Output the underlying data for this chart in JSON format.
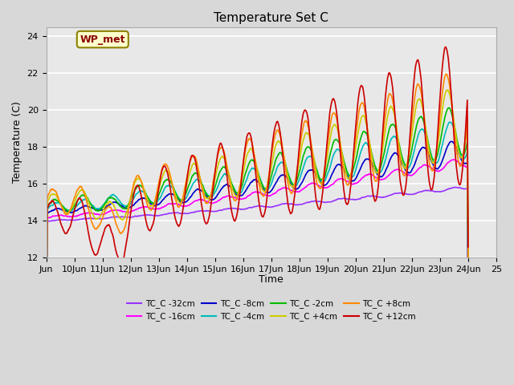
{
  "title": "Temperature Set C",
  "xlabel": "Time",
  "ylabel": "Temperature (C)",
  "xlim": [
    0,
    16
  ],
  "ylim": [
    12,
    24.5
  ],
  "yticks": [
    12,
    14,
    16,
    18,
    20,
    22,
    24
  ],
  "xtick_positions": [
    0,
    1,
    2,
    3,
    4,
    5,
    6,
    7,
    8,
    9,
    10,
    11,
    12,
    13,
    14,
    15,
    16
  ],
  "xtick_labels": [
    "Jun",
    "10Jun",
    "11Jun",
    "12Jun",
    "13Jun",
    "14Jun",
    "15Jun",
    "16Jun",
    "17Jun",
    "18Jun",
    "19Jun",
    "20Jun",
    "21Jun",
    "22Jun",
    "23Jun",
    "24Jun",
    "25"
  ],
  "fig_bg_color": "#d8d8d8",
  "plot_bg_color": "#e8e8e8",
  "grid_color": "#ffffff",
  "legend_label": "WP_met",
  "legend_box_color": "#ffffcc",
  "legend_box_edge": "#8B8000",
  "series": [
    {
      "label": "TC_C -32cm",
      "color": "#9933ff"
    },
    {
      "label": "TC_C -16cm",
      "color": "#ff00ff"
    },
    {
      "label": "TC_C -8cm",
      "color": "#0000cc"
    },
    {
      "label": "TC_C -4cm",
      "color": "#00bbbb"
    },
    {
      "label": "TC_C -2cm",
      "color": "#00bb00"
    },
    {
      "label": "TC_C +4cm",
      "color": "#cccc00"
    },
    {
      "label": "TC_C +8cm",
      "color": "#ff8800"
    },
    {
      "label": "TC_C +12cm",
      "color": "#cc0000"
    }
  ]
}
